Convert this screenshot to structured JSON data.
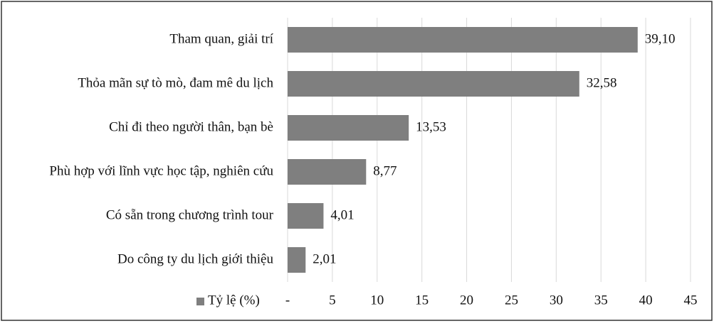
{
  "chart_data": {
    "type": "bar",
    "orientation": "horizontal",
    "categories": [
      "Tham quan, giải trí",
      "Thỏa mãn sự tò mò, đam mê du lịch",
      "Chỉ đi theo người thân, bạn bè",
      "Phù hợp với lĩnh vực học tập, nghiên cứu",
      "Có sẵn trong chương trình tour",
      "Do công ty du lịch giới thiệu"
    ],
    "series": [
      {
        "name": "Tỷ lệ (%)",
        "color": "#7f7f7f",
        "values": [
          39.1,
          32.58,
          13.53,
          8.77,
          4.01,
          2.01
        ],
        "value_labels": [
          "39,10",
          "32,58",
          "13,53",
          "8,77",
          "4,01",
          "2,01"
        ]
      }
    ],
    "xlim": [
      0,
      45
    ],
    "xticks": [
      {
        "value": 0,
        "label": "-"
      },
      5,
      10,
      15,
      20,
      25,
      30,
      35,
      40,
      45
    ],
    "grid": true,
    "legend": "bottom-left"
  }
}
